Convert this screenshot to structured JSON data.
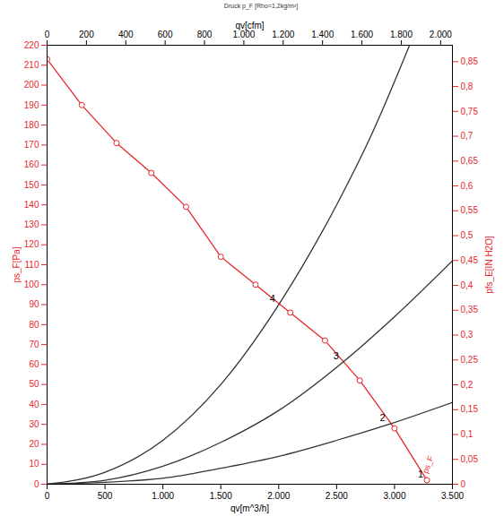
{
  "chart_data": {
    "type": "line",
    "title": "Druck p_F [Rho=1,2kg/m³]",
    "x_label": "qv[m^3/h]",
    "y_label": "ps_F[Pa]",
    "x2_label": "qv[cfm]",
    "y2_label": "pfs_E[IN H2O]",
    "xlim": [
      0,
      3500
    ],
    "xticks": [
      0,
      500,
      {
        "value": 1000,
        "label": "1.000"
      },
      {
        "value": 1500,
        "label": "1.500"
      },
      {
        "value": 2000,
        "label": "2.000"
      },
      {
        "value": 2500,
        "label": "2.500"
      },
      {
        "value": 3000,
        "label": "3.000"
      },
      {
        "value": 3500,
        "label": "3.500"
      }
    ],
    "ylim": [
      0,
      220
    ],
    "yticks": [
      0,
      10,
      20,
      30,
      40,
      50,
      60,
      70,
      80,
      90,
      100,
      110,
      120,
      130,
      140,
      150,
      160,
      170,
      180,
      190,
      200,
      210,
      220
    ],
    "x2lim": [
      0,
      2060
    ],
    "x2ticks": [
      0,
      200,
      400,
      600,
      800,
      {
        "value": 1000,
        "label": "1.000"
      },
      {
        "value": 1200,
        "label": "1.200"
      },
      {
        "value": 1400,
        "label": "1.400"
      },
      {
        "value": 1600,
        "label": "1.600"
      },
      {
        "value": 1800,
        "label": "1.800"
      },
      {
        "value": 2000,
        "label": "2.000"
      }
    ],
    "y2lim": [
      0,
      0.883
    ],
    "y2ticks": [
      0,
      {
        "value": 0.05,
        "label": "0,05"
      },
      {
        "value": 0.1,
        "label": "0,1"
      },
      {
        "value": 0.15,
        "label": "0,15"
      },
      {
        "value": 0.2,
        "label": "0,2"
      },
      {
        "value": 0.25,
        "label": "0,25"
      },
      {
        "value": 0.3,
        "label": "0,3"
      },
      {
        "value": 0.35,
        "label": "0,35"
      },
      {
        "value": 0.4,
        "label": "0,4"
      },
      {
        "value": 0.45,
        "label": "0,45"
      },
      {
        "value": 0.5,
        "label": "0,5"
      },
      {
        "value": 0.55,
        "label": "0,55"
      },
      {
        "value": 0.6,
        "label": "0,6"
      },
      {
        "value": 0.65,
        "label": "0,65"
      },
      {
        "value": 0.7,
        "label": "0,7"
      },
      {
        "value": 0.75,
        "label": "0,75"
      },
      {
        "value": 0.8,
        "label": "0,8"
      },
      {
        "value": 0.85,
        "label": "0,85"
      }
    ],
    "grid": false,
    "series": [
      {
        "name": "ps_F",
        "color": "#e8262a",
        "marker": "circle",
        "x": [
          0,
          300,
          600,
          900,
          1200,
          1500,
          1800,
          2100,
          2400,
          2700,
          3000,
          3280
        ],
        "values": [
          213,
          190,
          171,
          156,
          139,
          114,
          100,
          86,
          72,
          52,
          28,
          2
        ]
      },
      {
        "color": "#333333",
        "x": [
          0,
          500,
          1000,
          1500,
          2000,
          2500,
          2800,
          3130
        ],
        "values": [
          0,
          6,
          22,
          50,
          90,
          140,
          175,
          220
        ]
      },
      {
        "color": "#333333",
        "x": [
          0,
          500,
          1000,
          1500,
          2000,
          2550,
          3000,
          3500
        ],
        "values": [
          0,
          2,
          9,
          21,
          37,
          61,
          84,
          112
        ]
      },
      {
        "color": "#333333",
        "x": [
          0,
          1000,
          1500,
          2000,
          2500,
          2950,
          3500
        ],
        "values": [
          0,
          3,
          8,
          14,
          22,
          30,
          41
        ]
      }
    ],
    "annotations": [
      {
        "text": "1",
        "x": 3280,
        "y": 2
      },
      {
        "text": "2",
        "x": 2950,
        "y": 30
      },
      {
        "text": "3",
        "x": 2550,
        "y": 61
      },
      {
        "text": "4",
        "x": 2000,
        "y": 90
      }
    ]
  }
}
